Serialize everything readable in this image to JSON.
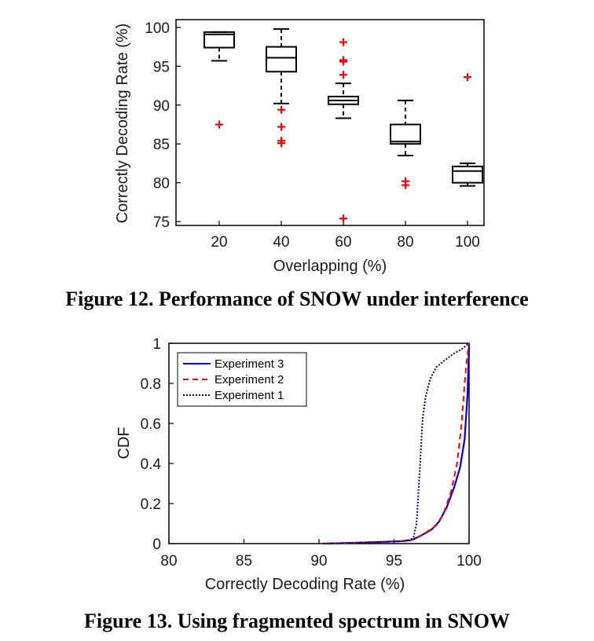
{
  "chart_data": [
    {
      "type": "box",
      "caption": "Figure 12. Performance of SNOW under interference",
      "xlabel": "Overlapping (%)",
      "ylabel": "Correctly Decoding Rate (%)",
      "ylim": [
        74.5,
        101
      ],
      "yticks": [
        75,
        80,
        85,
        90,
        95,
        100
      ],
      "categories": [
        "20",
        "40",
        "60",
        "80",
        "100"
      ],
      "boxes": [
        {
          "whisker_low": 95.7,
          "q1": 97.4,
          "median": 99.1,
          "q3": 99.4,
          "whisker_high": 99.4,
          "outliers": [
            87.5
          ]
        },
        {
          "whisker_low": 90.2,
          "q1": 94.3,
          "median": 96.1,
          "q3": 97.5,
          "whisker_high": 99.8,
          "outliers": [
            89.4,
            87.2,
            85.4,
            85.1
          ]
        },
        {
          "whisker_low": 88.3,
          "q1": 90.1,
          "median": 90.6,
          "q3": 91.1,
          "whisker_high": 92.8,
          "outliers": [
            98.1,
            95.8,
            95.6,
            93.9,
            75.4
          ]
        },
        {
          "whisker_low": 83.5,
          "q1": 85.0,
          "median": 85.3,
          "q3": 87.5,
          "whisker_high": 90.6,
          "outliers": [
            80.2,
            79.7
          ]
        },
        {
          "whisker_low": 79.6,
          "q1": 80.0,
          "median": 81.5,
          "q3": 82.1,
          "whisker_high": 82.5,
          "outliers": [
            93.6
          ]
        }
      ],
      "grid": false
    },
    {
      "type": "line",
      "caption": "Figure 13. Using fragmented spectrum in SNOW",
      "xlabel": "Correctly Decoding Rate (%)",
      "ylabel": "CDF",
      "xlim": [
        80,
        100
      ],
      "ylim": [
        0,
        1
      ],
      "xticks": [
        80,
        85,
        90,
        95,
        100
      ],
      "yticks": [
        0,
        0.2,
        0.4,
        0.6,
        0.8,
        1
      ],
      "ytick_labels": [
        "0",
        "0.2",
        "0.4",
        "0.6",
        "0.8",
        "1"
      ],
      "legend_position": "top-left",
      "grid": false,
      "series": [
        {
          "name": "Experiment 3",
          "color": "#0000dd",
          "style": "solid",
          "x": [
            90.3,
            92,
            94,
            95.5,
            96.2,
            96.8,
            97.5,
            98.0,
            98.5,
            99.0,
            99.4,
            99.7,
            99.9,
            100
          ],
          "y": [
            0,
            0.003,
            0.008,
            0.012,
            0.018,
            0.04,
            0.07,
            0.11,
            0.18,
            0.28,
            0.38,
            0.52,
            0.75,
            1
          ]
        },
        {
          "name": "Experiment 2",
          "color": "#ff0000",
          "style": "dashed",
          "x": [
            90.3,
            92,
            94,
            95.5,
            96.3,
            97.0,
            97.8,
            98.3,
            98.8,
            99.2,
            99.5,
            99.7,
            99.85,
            100
          ],
          "y": [
            0,
            0.003,
            0.008,
            0.012,
            0.02,
            0.05,
            0.09,
            0.15,
            0.26,
            0.4,
            0.6,
            0.8,
            0.92,
            1
          ]
        },
        {
          "name": "Experiment 1",
          "color": "#000088",
          "style": "dotted",
          "x": [
            90.3,
            92,
            94,
            95.5,
            96.0,
            96.3,
            96.5,
            96.7,
            96.9,
            97.1,
            97.4,
            97.8,
            98.3,
            99.0,
            99.5,
            100
          ],
          "y": [
            0,
            0.003,
            0.008,
            0.012,
            0.015,
            0.03,
            0.1,
            0.35,
            0.62,
            0.73,
            0.82,
            0.88,
            0.91,
            0.95,
            0.97,
            1
          ]
        }
      ]
    }
  ]
}
